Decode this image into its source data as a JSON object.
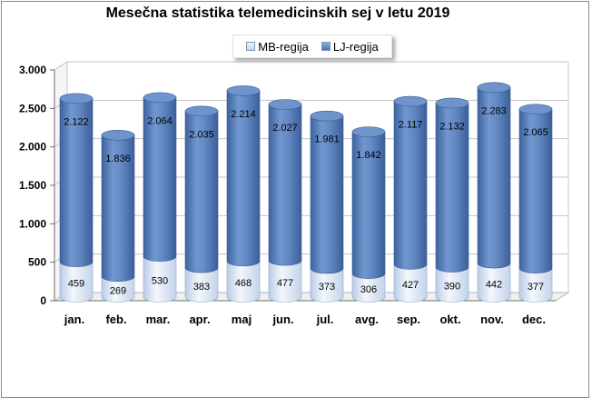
{
  "chart_data": {
    "type": "bar",
    "stacked": true,
    "title": "Mesečna statistika telemedicinskih sej v letu 2019",
    "categories": [
      "jan.",
      "feb.",
      "mar.",
      "apr.",
      "maj",
      "jun.",
      "jul.",
      "avg.",
      "sep.",
      "okt.",
      "nov.",
      "dec."
    ],
    "series": [
      {
        "name": "MB-regija",
        "values": [
          459,
          269,
          530,
          383,
          468,
          477,
          373,
          306,
          427,
          390,
          442,
          377
        ],
        "labels": [
          "459",
          "269",
          "530",
          "383",
          "468",
          "477",
          "373",
          "306",
          "427",
          "390",
          "442",
          "377"
        ],
        "color": "#dce6f3"
      },
      {
        "name": "LJ-regija",
        "values": [
          2122,
          1836,
          2064,
          2035,
          2214,
          2027,
          1981,
          1842,
          2117,
          2132,
          2283,
          2065
        ],
        "labels": [
          "2.122",
          "1.836",
          "2.064",
          "2.035",
          "2.214",
          "2.027",
          "1.981",
          "1.842",
          "2.117",
          "2.132",
          "2.283",
          "2.065"
        ],
        "color": "#5b82bd"
      }
    ],
    "ylim": [
      0,
      3000
    ],
    "yticks": [
      0,
      500,
      1000,
      1500,
      2000,
      2500,
      3000
    ],
    "ytick_labels": [
      "0",
      "500",
      "1.000",
      "1.500",
      "2.000",
      "2.500",
      "3.000"
    ],
    "grid": true,
    "legend": "top-center",
    "xlabel": "",
    "ylabel": ""
  }
}
